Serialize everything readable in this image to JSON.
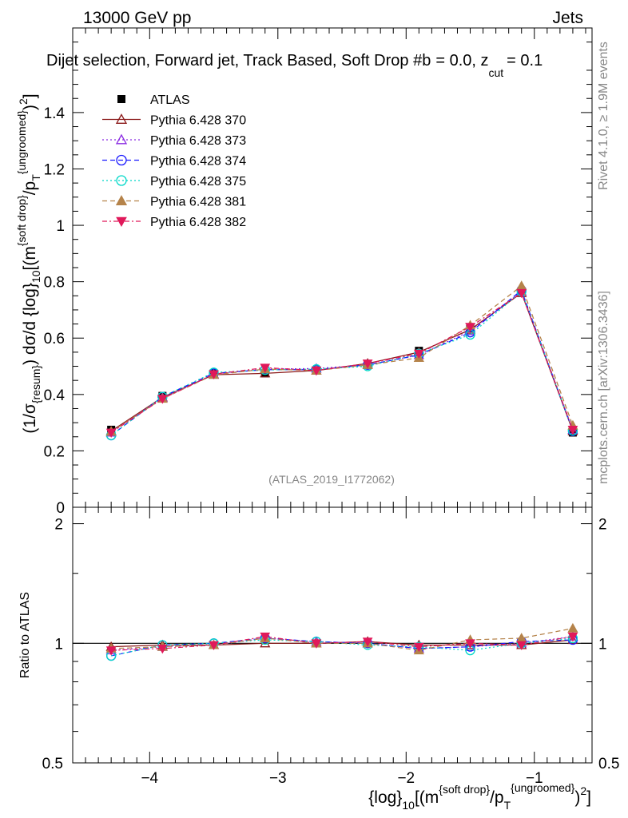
{
  "header": {
    "left": "13000 GeV pp",
    "right": "Jets",
    "title": "Dijet selection, Forward jet, Track Based, Soft Drop #b",
    "title_tail": "= 0.0, z",
    "title_tail_sub": "cut",
    "title_tail_end": "= 0.1"
  },
  "side_labels": {
    "rivet": "Rivet 4.1.0, ≥ 1.9M events",
    "mcplots": "mcplots.cern.ch [arXiv:1306.3436]"
  },
  "watermark": "(ATLAS_2019_I1772062)",
  "axis": {
    "ylabel_main_parts": [
      "(1/σ",
      "{resum}",
      ") dσ/d {log}",
      "10",
      "[(m",
      "{soft drop}",
      "/p",
      "T",
      "{ungroomed}",
      ")",
      "2",
      "]"
    ],
    "ylabel_ratio": "Ratio to ATLAS",
    "xlabel_parts": [
      "{log}",
      "10",
      "[(m",
      "{soft drop}",
      "/p",
      "T",
      "{ungroomed}",
      ")",
      "2",
      "]"
    ]
  },
  "legend": [
    {
      "label": "ATLAS",
      "color": "#000000",
      "marker": "square-filled",
      "dash": "none"
    },
    {
      "label": "Pythia 6.428 370",
      "color": "#8b1a1a",
      "marker": "triangle-up-open",
      "dash": "solid"
    },
    {
      "label": "Pythia 6.428 373",
      "color": "#8a2be2",
      "marker": "triangle-up-open",
      "dash": "dotted"
    },
    {
      "label": "Pythia 6.428 374",
      "color": "#1a1aff",
      "marker": "circle-open",
      "dash": "dashed"
    },
    {
      "label": "Pythia 6.428 375",
      "color": "#00d8c8",
      "marker": "circle-open",
      "dash": "dotted"
    },
    {
      "label": "Pythia 6.428 381",
      "color": "#b5834a",
      "marker": "triangle-up-filled",
      "dash": "dashed"
    },
    {
      "label": "Pythia 6.428 382",
      "color": "#e0195a",
      "marker": "triangle-down-filled",
      "dash": "dashdot"
    }
  ],
  "chart_data": [
    {
      "type": "scatter",
      "panel": "main",
      "xlim": [
        -4.6,
        -0.55
      ],
      "ylim": [
        0,
        1.7
      ],
      "x_ticks": [
        -4,
        -3,
        -2,
        -1
      ],
      "y_ticks": [
        0,
        0.2,
        0.4,
        0.6,
        0.8,
        1,
        1.2,
        1.4
      ],
      "y_tick_labels": [
        "0",
        "0.2",
        "0.4",
        "0.6",
        "0.8",
        "1",
        "1.2",
        "1.4"
      ],
      "x": [
        -4.3,
        -3.9,
        -3.5,
        -3.1,
        -2.7,
        -2.3,
        -1.9,
        -1.5,
        -1.1,
        -0.7
      ],
      "series": [
        {
          "name": "ATLAS",
          "values": [
            0.275,
            0.395,
            0.475,
            0.475,
            0.485,
            0.505,
            0.555,
            0.635,
            0.765,
            0.265
          ]
        },
        {
          "name": "Pythia 6.428 370",
          "values": [
            0.27,
            0.39,
            0.47,
            0.475,
            0.485,
            0.51,
            0.55,
            0.63,
            0.76,
            0.27
          ]
        },
        {
          "name": "Pythia 6.428 373",
          "values": [
            0.265,
            0.388,
            0.472,
            0.49,
            0.492,
            0.505,
            0.54,
            0.625,
            0.765,
            0.275
          ]
        },
        {
          "name": "Pythia 6.428 374",
          "values": [
            0.255,
            0.392,
            0.475,
            0.488,
            0.488,
            0.505,
            0.54,
            0.62,
            0.77,
            0.27
          ]
        },
        {
          "name": "Pythia 6.428 375",
          "values": [
            0.255,
            0.392,
            0.478,
            0.487,
            0.49,
            0.5,
            0.545,
            0.612,
            0.765,
            0.272
          ]
        },
        {
          "name": "Pythia 6.428 381",
          "values": [
            0.268,
            0.385,
            0.47,
            0.49,
            0.485,
            0.505,
            0.53,
            0.645,
            0.785,
            0.29
          ]
        },
        {
          "name": "Pythia 6.428 382",
          "values": [
            0.265,
            0.385,
            0.472,
            0.495,
            0.485,
            0.51,
            0.545,
            0.64,
            0.76,
            0.275
          ]
        }
      ]
    },
    {
      "type": "scatter",
      "panel": "ratio",
      "xlim": [
        -4.6,
        -0.55
      ],
      "ylim": [
        0.5,
        2.2
      ],
      "y_scale": "log",
      "x_ticks": [
        -4,
        -3,
        -2,
        -1
      ],
      "x_tick_labels": [
        "−4",
        "−3",
        "−2",
        "−1"
      ],
      "y_ticks": [
        0.5,
        1,
        2
      ],
      "y_tick_labels": [
        "0.5",
        "1",
        "2"
      ],
      "x": [
        -4.3,
        -3.9,
        -3.5,
        -3.1,
        -2.7,
        -2.3,
        -1.9,
        -1.5,
        -1.1,
        -0.7
      ],
      "series": [
        {
          "name": "Pythia 6.428 370",
          "values": [
            0.98,
            0.99,
            0.99,
            1.0,
            1.0,
            1.01,
            0.99,
            0.99,
            0.99,
            1.02
          ]
        },
        {
          "name": "Pythia 6.428 373",
          "values": [
            0.96,
            0.98,
            0.99,
            1.03,
            1.01,
            1.0,
            0.97,
            0.98,
            1.0,
            1.04
          ]
        },
        {
          "name": "Pythia 6.428 374",
          "values": [
            0.93,
            0.99,
            1.0,
            1.03,
            1.01,
            1.0,
            0.97,
            0.98,
            1.01,
            1.02
          ]
        },
        {
          "name": "Pythia 6.428 375",
          "values": [
            0.93,
            0.99,
            1.0,
            1.02,
            1.01,
            0.99,
            0.98,
            0.96,
            1.0,
            1.03
          ]
        },
        {
          "name": "Pythia 6.428 381",
          "values": [
            0.97,
            0.98,
            0.99,
            1.03,
            1.0,
            1.0,
            0.96,
            1.02,
            1.03,
            1.09
          ]
        },
        {
          "name": "Pythia 6.428 382",
          "values": [
            0.96,
            0.97,
            0.99,
            1.04,
            1.0,
            1.01,
            0.98,
            1.0,
            0.99,
            1.04
          ]
        }
      ]
    }
  ]
}
